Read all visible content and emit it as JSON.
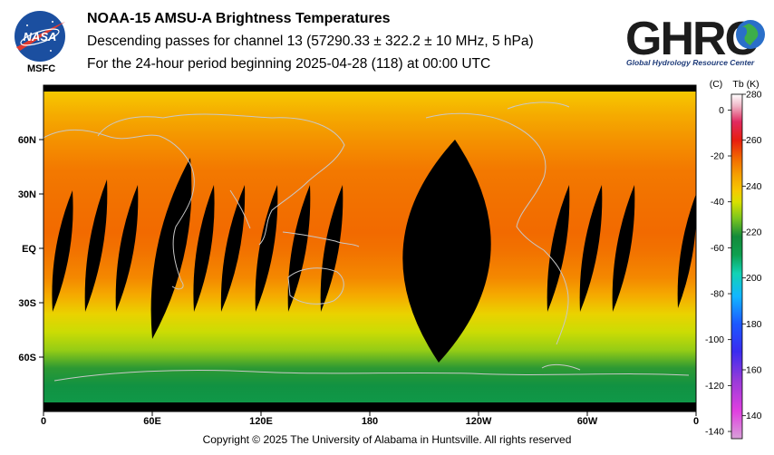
{
  "header": {
    "title": "NOAA-15 AMSU-A Brightness Temperatures",
    "line2": "Descending passes for channel 13 (57290.33 ± 322.2 ± 10 MHz, 5 hPa)",
    "line3": "For the 24-hour period beginning 2025-04-28 (118) at 00:00 UTC"
  },
  "logos": {
    "nasa": {
      "wordmark": "NASA",
      "label": "MSFC",
      "color": "#1b4fa0",
      "accent": "#e03a2f"
    },
    "ghrc": {
      "wordmark": "GHRC",
      "caption": "Global Hydrology Resource Center",
      "color": "#1c1c1c"
    }
  },
  "footer": {
    "copyright": "Copyright © 2025 The University of Alabama in Huntsville.  All rights reserved"
  },
  "chart_data": {
    "type": "heatmap",
    "projection": "equirectangular global map",
    "x": {
      "ticks": [
        {
          "lon": 0,
          "label": "0"
        },
        {
          "lon": 60,
          "label": "60E"
        },
        {
          "lon": 120,
          "label": "120E"
        },
        {
          "lon": 180,
          "label": "180"
        },
        {
          "lon": 240,
          "label": "120W"
        },
        {
          "lon": 300,
          "label": "60W"
        },
        {
          "lon": 360,
          "label": "0"
        }
      ],
      "range": [
        0,
        360
      ]
    },
    "y": {
      "ticks": [
        {
          "lat": 60,
          "label": "60N"
        },
        {
          "lat": 30,
          "label": "30N"
        },
        {
          "lat": 0,
          "label": "EQ"
        },
        {
          "lat": -30,
          "label": "30S"
        },
        {
          "lat": -60,
          "label": "60S"
        }
      ],
      "range": [
        -90,
        90
      ]
    },
    "colorbar": {
      "left_label": "(C)",
      "right_label": "Tb  (K)",
      "celsius_ticks": [
        "0",
        "-20",
        "-40",
        "-60",
        "-80",
        "-100",
        "-120",
        "-140"
      ],
      "kelvin_ticks": [
        "280",
        "260",
        "240",
        "220",
        "200",
        "180",
        "160",
        "140"
      ],
      "range_k": [
        130,
        280
      ],
      "stops": [
        {
          "k": 130,
          "color": "#d8a0d8"
        },
        {
          "k": 142,
          "color": "#e040e0"
        },
        {
          "k": 155,
          "color": "#9a3bd8"
        },
        {
          "k": 168,
          "color": "#3a2cf0"
        },
        {
          "k": 180,
          "color": "#1c58ff"
        },
        {
          "k": 192,
          "color": "#12b6ff"
        },
        {
          "k": 202,
          "color": "#12d2b4"
        },
        {
          "k": 210,
          "color": "#0ea050"
        },
        {
          "k": 218,
          "color": "#138a3a"
        },
        {
          "k": 226,
          "color": "#7cc61e"
        },
        {
          "k": 233,
          "color": "#d8e000"
        },
        {
          "k": 238,
          "color": "#f6c800"
        },
        {
          "k": 245,
          "color": "#f59f00"
        },
        {
          "k": 252,
          "color": "#f26a00"
        },
        {
          "k": 260,
          "color": "#e81e10"
        },
        {
          "k": 268,
          "color": "#e02a60"
        },
        {
          "k": 275,
          "color": "#f0b8c8"
        },
        {
          "k": 280,
          "color": "#ffffff"
        }
      ]
    },
    "field": {
      "description_rows": [
        {
          "lat": 90,
          "k": 238
        },
        {
          "lat": 75,
          "k": 243
        },
        {
          "lat": 60,
          "k": 247
        },
        {
          "lat": 45,
          "k": 250
        },
        {
          "lat": 30,
          "k": 251
        },
        {
          "lat": 10,
          "k": 252
        },
        {
          "lat": 0,
          "k": 251
        },
        {
          "lat": -15,
          "k": 248
        },
        {
          "lat": -25,
          "k": 243
        },
        {
          "lat": -35,
          "k": 236
        },
        {
          "lat": -45,
          "k": 232
        },
        {
          "lat": -55,
          "k": 228
        },
        {
          "lat": -65,
          "k": 220
        },
        {
          "lat": -75,
          "k": 215
        },
        {
          "lat": -90,
          "k": 213
        }
      ]
    },
    "no_data_swaths": [
      {
        "lon_top": 16,
        "lon_bot": 5,
        "lat_top": 32,
        "lat_bot": -35,
        "width": 3.5
      },
      {
        "lon_top": 35,
        "lon_bot": 23,
        "lat_top": 38,
        "lat_bot": -35,
        "width": 3.5
      },
      {
        "lon_top": 52,
        "lon_bot": 40,
        "lat_top": 35,
        "lat_bot": -35,
        "width": 3.5
      },
      {
        "lon_top": 81,
        "lon_bot": 60,
        "lat_top": 50,
        "lat_bot": -50,
        "width": 7
      },
      {
        "lon_top": 94,
        "lon_bot": 83,
        "lat_top": 35,
        "lat_bot": -35,
        "width": 3.5
      },
      {
        "lon_top": 111,
        "lon_bot": 98,
        "lat_top": 35,
        "lat_bot": -35,
        "width": 3.5
      },
      {
        "lon_top": 129,
        "lon_bot": 117,
        "lat_top": 35,
        "lat_bot": -35,
        "width": 3.5
      },
      {
        "lon_top": 147,
        "lon_bot": 135,
        "lat_top": 35,
        "lat_bot": -35,
        "width": 3.5
      },
      {
        "lon_top": 165,
        "lon_bot": 153,
        "lat_top": 35,
        "lat_bot": -35,
        "width": 3.5
      },
      {
        "lon_top": 227,
        "lon_bot": 218,
        "lat_top": 60,
        "lat_bot": -63,
        "width": 22
      },
      {
        "lon_top": 290,
        "lon_bot": 278,
        "lat_top": 35,
        "lat_bot": -35,
        "width": 3.5
      },
      {
        "lon_top": 308,
        "lon_bot": 296,
        "lat_top": 35,
        "lat_bot": -35,
        "width": 3.5
      },
      {
        "lon_top": 326,
        "lon_bot": 314,
        "lat_top": 35,
        "lat_bot": -35,
        "width": 3.5
      },
      {
        "lon_top": 360,
        "lon_bot": 350,
        "lat_top": 30,
        "lat_bot": -33,
        "width": 3
      }
    ],
    "no_data_color": "#000000",
    "coastline_color": "#c8c8c8"
  }
}
